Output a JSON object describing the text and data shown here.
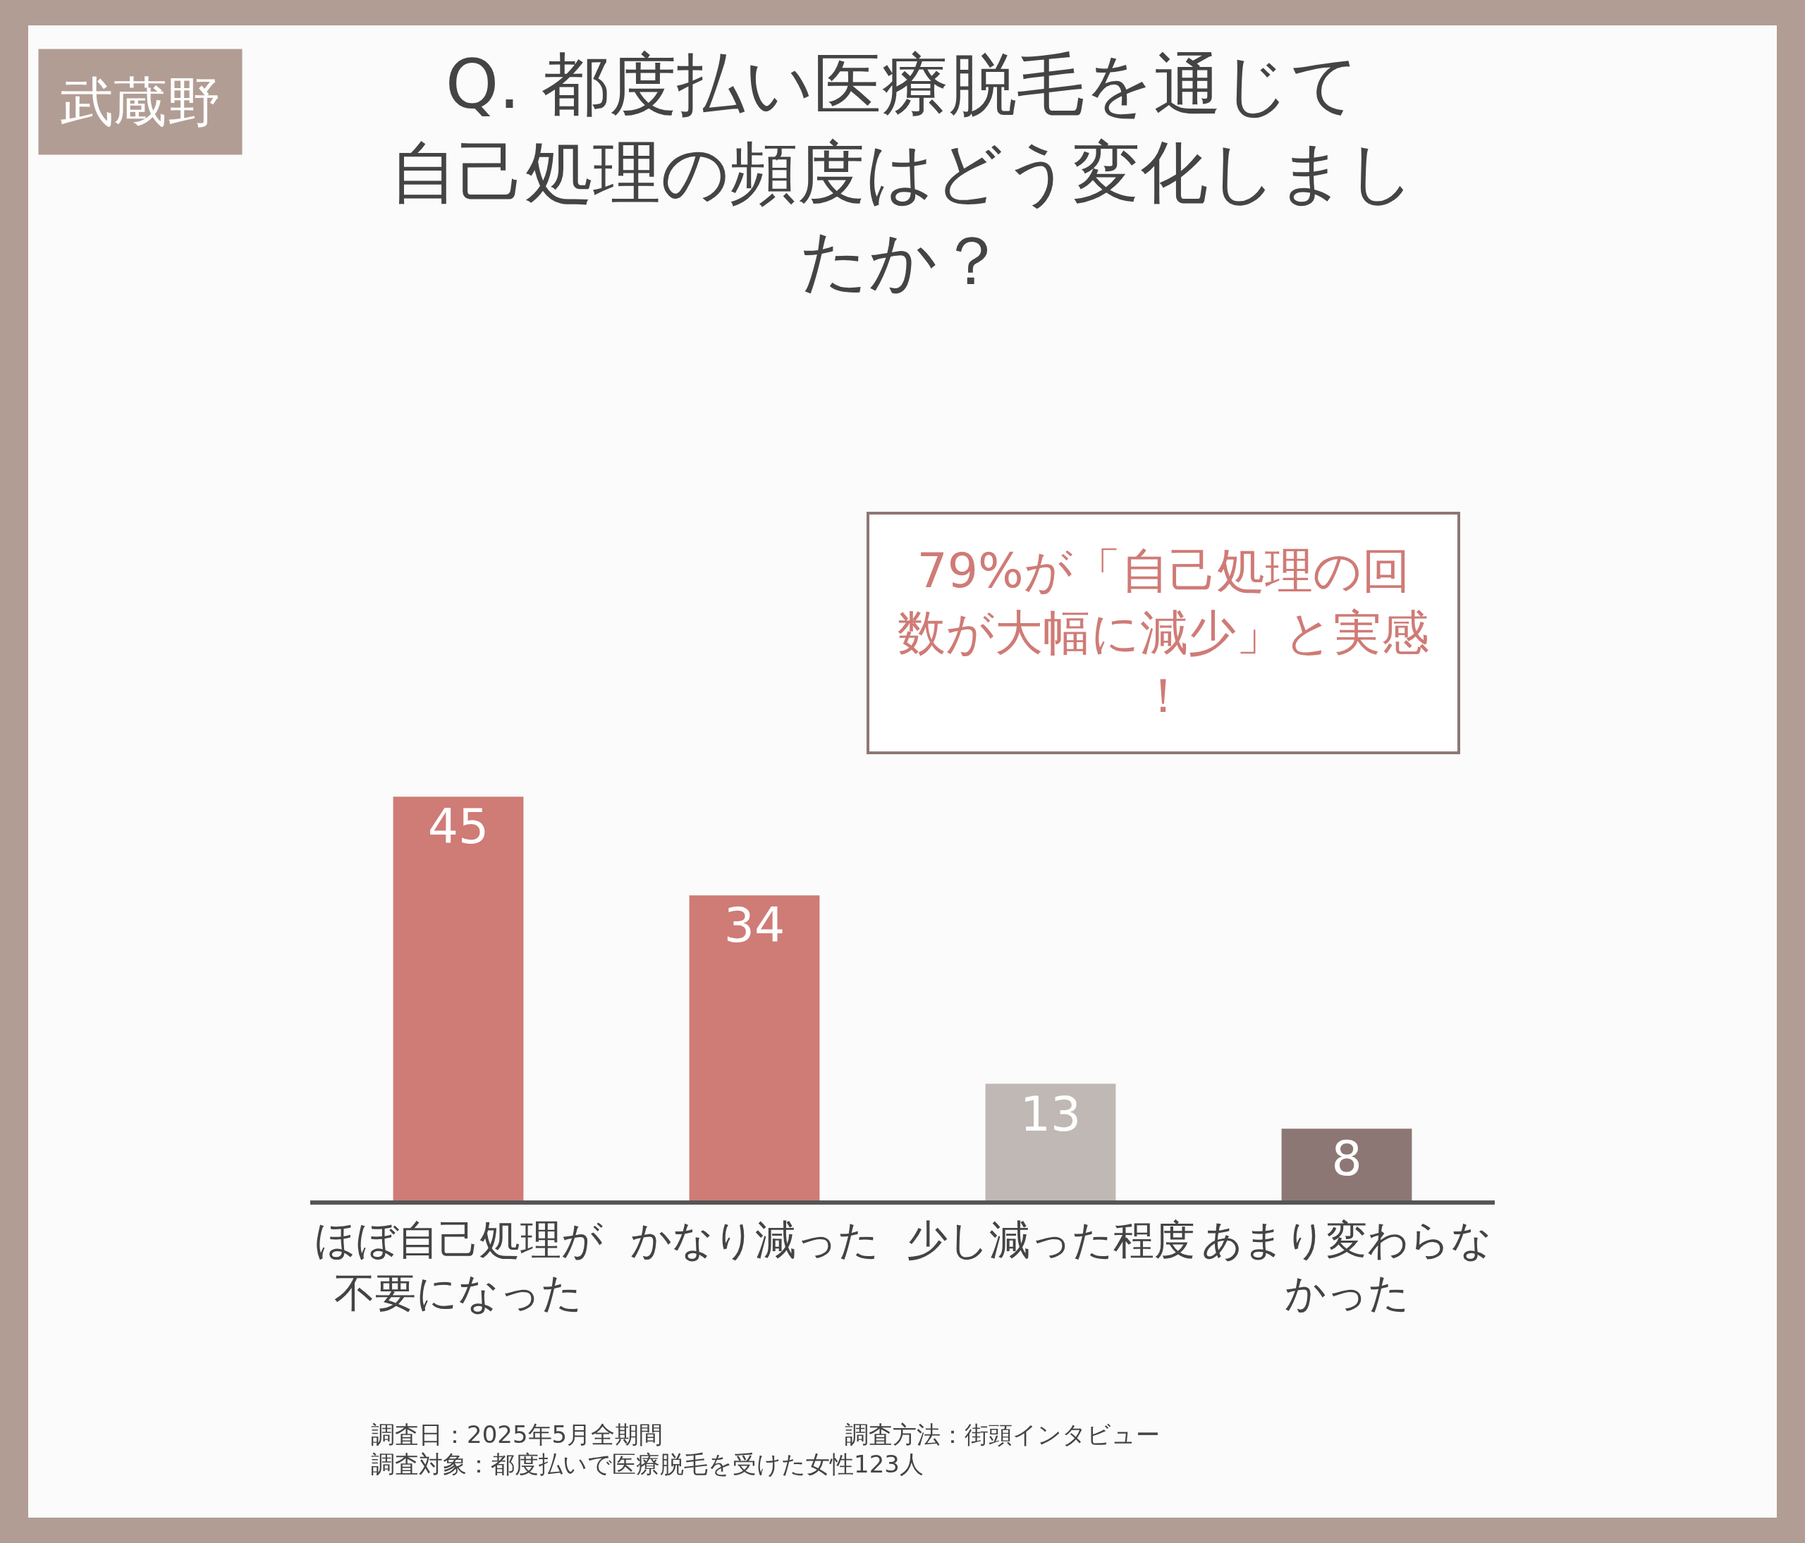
{
  "chart_data": {
    "type": "bar",
    "title": "Q. 都度払い医療脱毛を通じて自己処理の頻度はどう変化しましたか？",
    "subtitle": "武蔵野",
    "categories": [
      "ほぼ自己処理が不要になった",
      "かなり減った",
      "少し減った程度",
      "あまり変わらなかった"
    ],
    "values": [
      45,
      34,
      13,
      8
    ],
    "colors": [
      "#cf7b76",
      "#cf7b76",
      "#c0b8b4",
      "#8d7775"
    ],
    "data_labels": true,
    "grid": false,
    "legend": false,
    "annotations": [
      "79%が「自己処理の回数が大幅に減少」と実感！",
      "調査日：2025年5月全期間",
      "調査方法：街頭インタビュー",
      "調査対象：都度払いで医療脱毛を受けた女性123人"
    ]
  }
}
